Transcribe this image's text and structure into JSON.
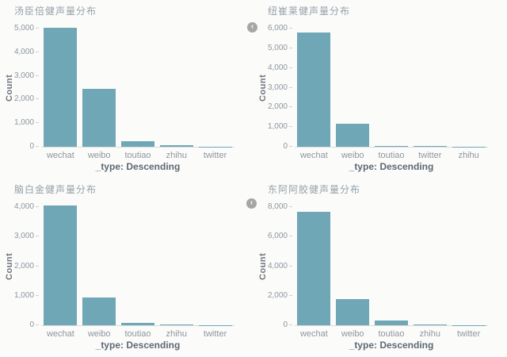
{
  "style": {
    "page_bg": "#fbfbfa",
    "bar_color": "#6FA7B7",
    "axis_line_color": "#dcdcdc",
    "tick_dash_color": "#cfcfcf",
    "tick_label_color": "#8e969c",
    "title_color": "#95a1a9",
    "ylabel_color": "#6e767d",
    "caption_color": "#5d6974",
    "nav_button_color": "#a6a6a6"
  },
  "nav": {
    "top_button": {
      "icon": "chevron-left",
      "symbol": "‹"
    },
    "bottom_button": {
      "icon": "chevron-left",
      "symbol": "‹"
    }
  },
  "chart_data": [
    {
      "type": "bar",
      "title": "汤臣倍健声量分布",
      "xlabel": "_type: Descending",
      "ylabel": "Count",
      "categories": [
        "wechat",
        "weibo",
        "toutiao",
        "zhihu",
        "twitter"
      ],
      "values": [
        5020,
        2450,
        250,
        80,
        10
      ],
      "ylim": [
        0,
        5000
      ],
      "ytick_step": 1000,
      "grid": false,
      "legend": "none"
    },
    {
      "type": "bar",
      "title": "纽崔莱健声量分布",
      "xlabel": "_type: Descending",
      "ylabel": "Count",
      "categories": [
        "wechat",
        "weibo",
        "toutiao",
        "twitter",
        "zhihu"
      ],
      "values": [
        5800,
        1150,
        60,
        35,
        10
      ],
      "ylim": [
        0,
        6000
      ],
      "ytick_step": 1000,
      "grid": false,
      "legend": "none"
    },
    {
      "type": "bar",
      "title": "脑白金健声量分布",
      "xlabel": "_type: Descending",
      "ylabel": "Count",
      "categories": [
        "wechat",
        "weibo",
        "toutiao",
        "zhihu",
        "twitter"
      ],
      "values": [
        4050,
        950,
        90,
        40,
        10
      ],
      "ylim": [
        0,
        4000
      ],
      "ytick_step": 1000,
      "grid": false,
      "legend": "none"
    },
    {
      "type": "bar",
      "title": "东阿阿胶健声量分布",
      "xlabel": "_type: Descending",
      "ylabel": "Count",
      "categories": [
        "wechat",
        "weibo",
        "toutiao",
        "zhihu",
        "twitter"
      ],
      "values": [
        7700,
        1750,
        300,
        40,
        10
      ],
      "ylim": [
        0,
        8000
      ],
      "ytick_step": 2000,
      "grid": false,
      "legend": "none"
    }
  ]
}
